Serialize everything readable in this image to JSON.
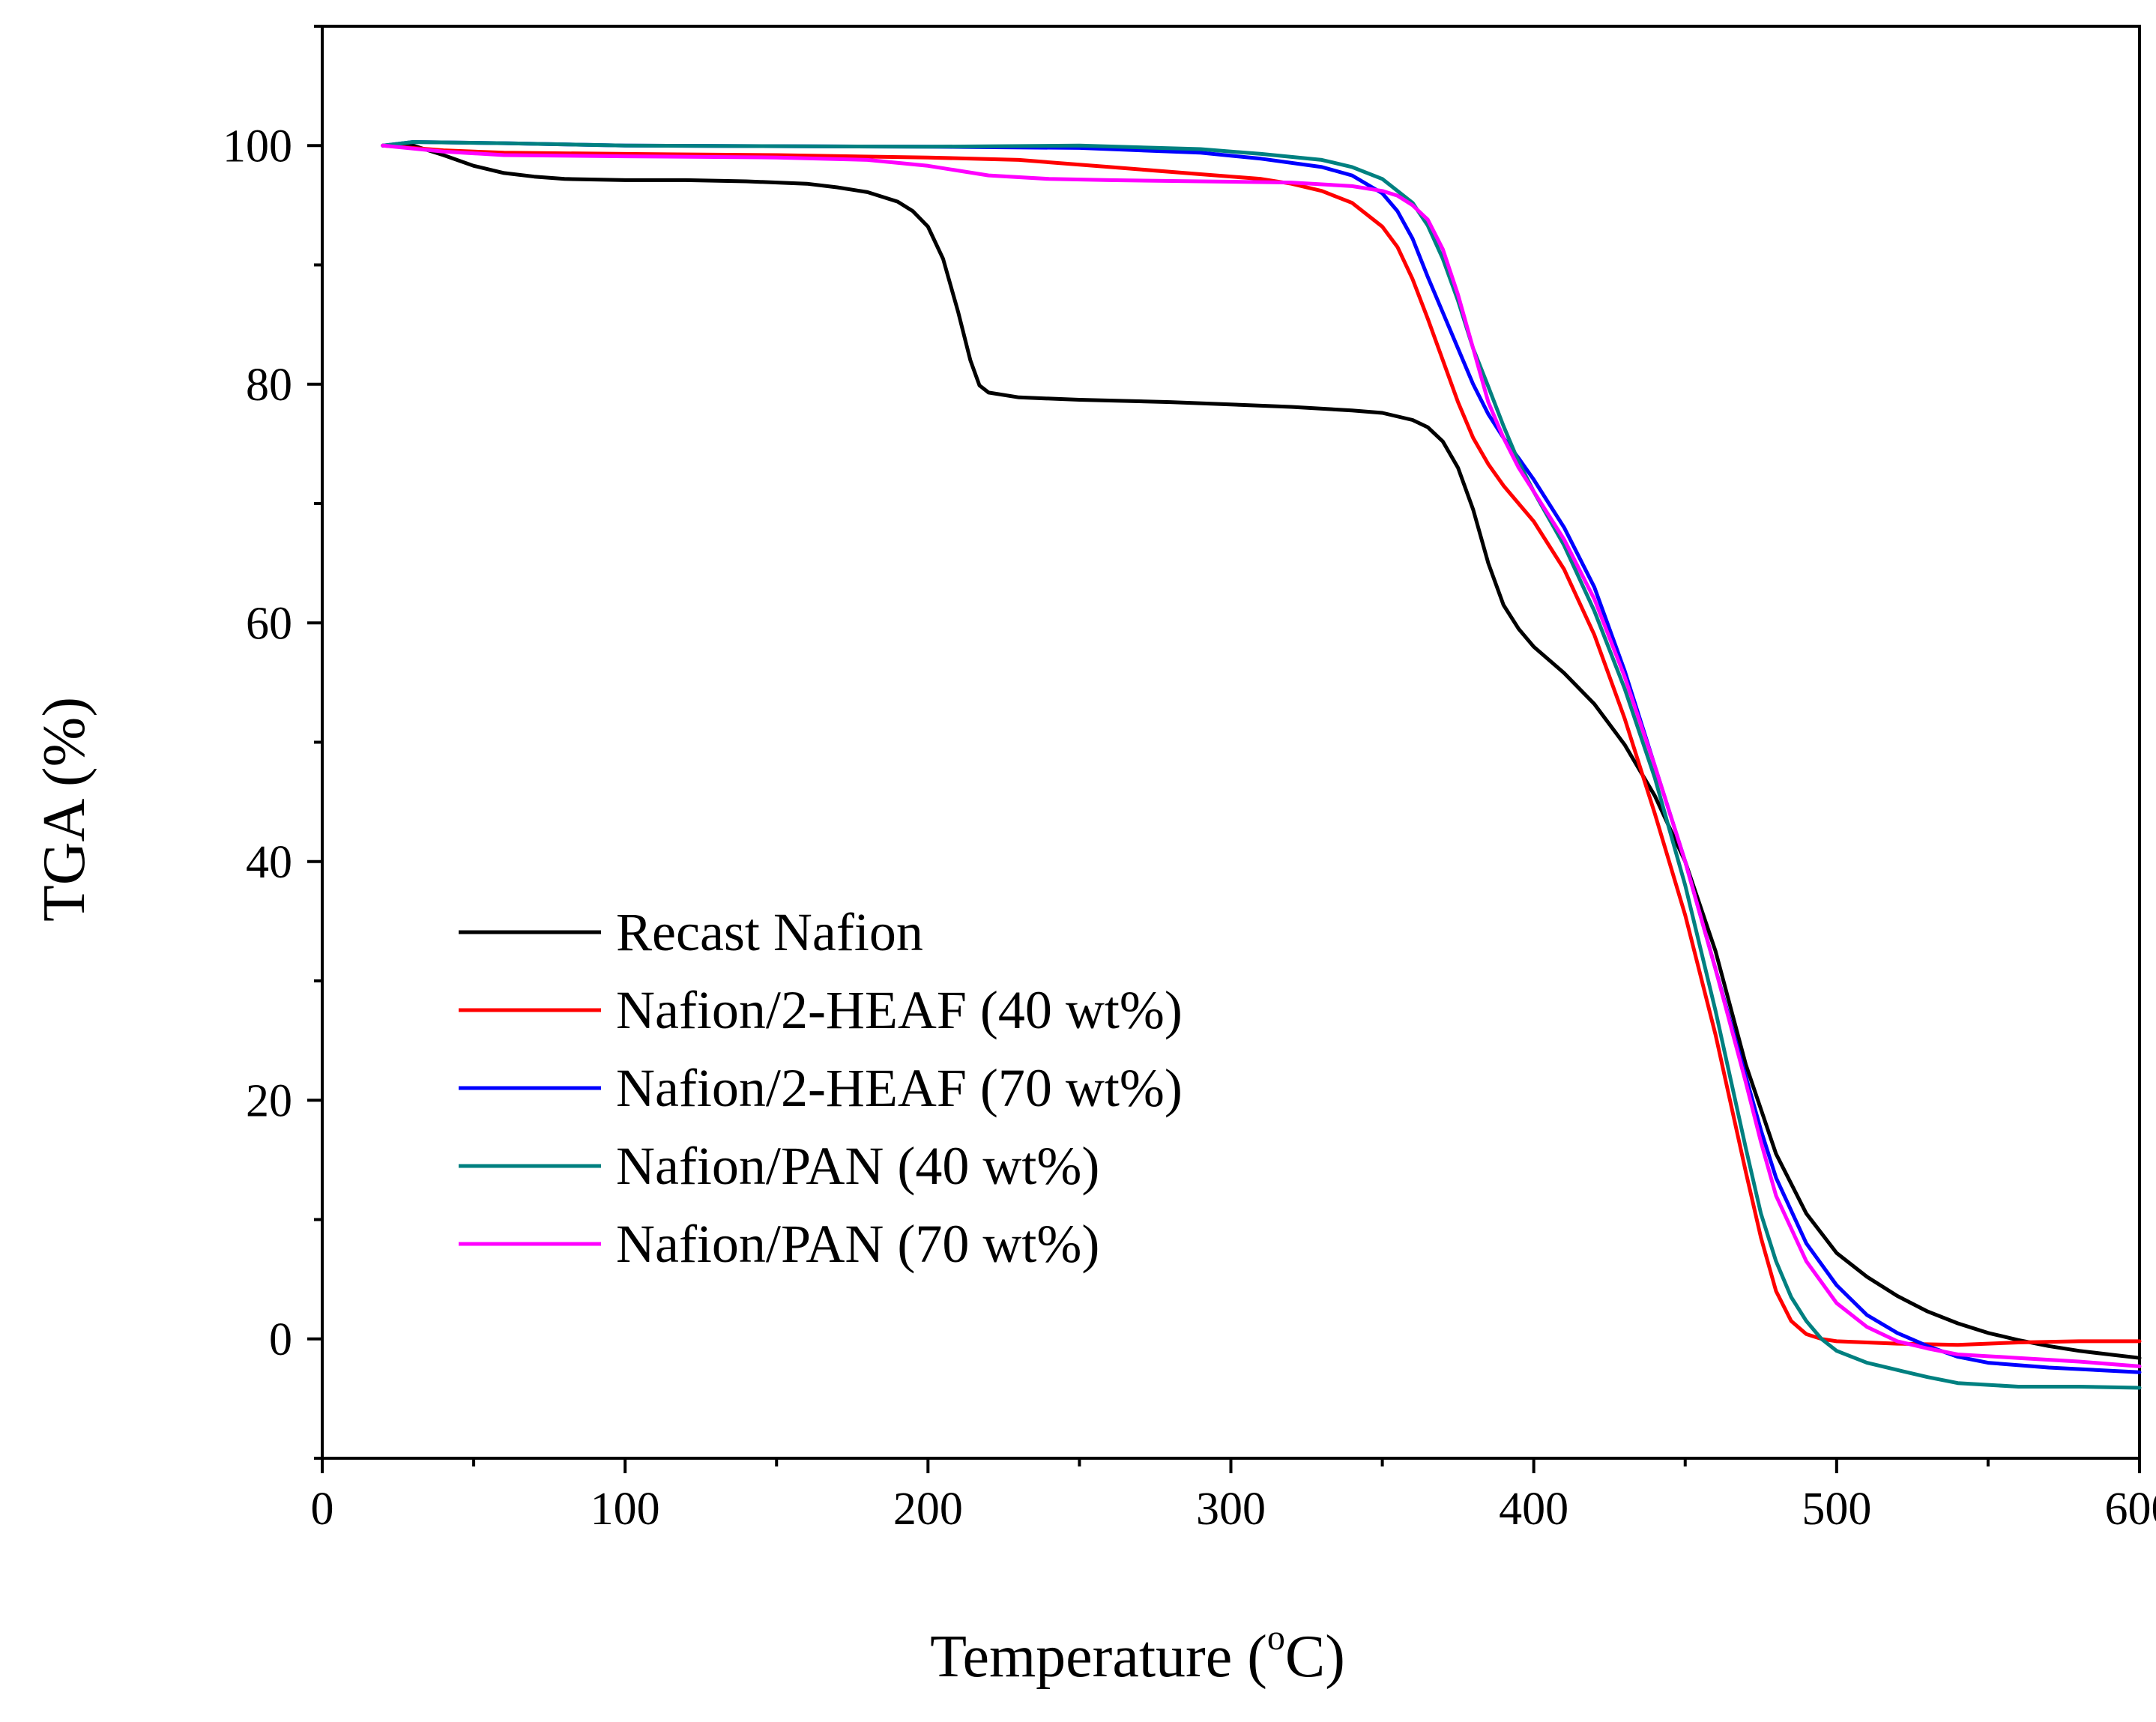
{
  "chart_data": {
    "type": "line",
    "title": "",
    "xlabel": "Temperature (",
    "xlabel_unit_sup": "o",
    "xlabel_unit_end": "C)",
    "ylabel": "TGA (%)",
    "xlim": [
      0,
      600
    ],
    "ylim": [
      -10,
      110
    ],
    "xticks": [
      0,
      100,
      200,
      300,
      400,
      500,
      600
    ],
    "yticks": [
      0,
      20,
      40,
      60,
      80,
      100
    ],
    "grid": false,
    "legend_position": "lower-left",
    "series": [
      {
        "name": "Recast Nafion",
        "color": "#000000",
        "points": [
          [
            20,
            100
          ],
          [
            30,
            100
          ],
          [
            40,
            99.2
          ],
          [
            50,
            98.3
          ],
          [
            60,
            97.7
          ],
          [
            70,
            97.4
          ],
          [
            80,
            97.2
          ],
          [
            100,
            97.1
          ],
          [
            120,
            97.1
          ],
          [
            140,
            97
          ],
          [
            160,
            96.8
          ],
          [
            170,
            96.5
          ],
          [
            180,
            96.1
          ],
          [
            190,
            95.3
          ],
          [
            195,
            94.5
          ],
          [
            200,
            93.2
          ],
          [
            205,
            90.5
          ],
          [
            210,
            86
          ],
          [
            214,
            82
          ],
          [
            217,
            79.9
          ],
          [
            220,
            79.3
          ],
          [
            230,
            78.9
          ],
          [
            250,
            78.7
          ],
          [
            280,
            78.5
          ],
          [
            300,
            78.3
          ],
          [
            320,
            78.1
          ],
          [
            340,
            77.8
          ],
          [
            350,
            77.6
          ],
          [
            360,
            77
          ],
          [
            365,
            76.4
          ],
          [
            370,
            75.2
          ],
          [
            375,
            73
          ],
          [
            380,
            69.5
          ],
          [
            385,
            65
          ],
          [
            390,
            61.5
          ],
          [
            395,
            59.5
          ],
          [
            400,
            58
          ],
          [
            410,
            55.8
          ],
          [
            420,
            53.2
          ],
          [
            430,
            49.8
          ],
          [
            440,
            45.5
          ],
          [
            450,
            40
          ],
          [
            460,
            32.5
          ],
          [
            470,
            23
          ],
          [
            480,
            15.5
          ],
          [
            490,
            10.5
          ],
          [
            500,
            7.2
          ],
          [
            510,
            5.2
          ],
          [
            520,
            3.6
          ],
          [
            530,
            2.3
          ],
          [
            540,
            1.3
          ],
          [
            550,
            0.5
          ],
          [
            560,
            -0.1
          ],
          [
            570,
            -0.6
          ],
          [
            580,
            -1
          ],
          [
            590,
            -1.3
          ],
          [
            600,
            -1.6
          ]
        ]
      },
      {
        "name": "Nafion/2-HEAF (40 wt%)",
        "color": "#ff0000",
        "points": [
          [
            20,
            100
          ],
          [
            40,
            99.6
          ],
          [
            60,
            99.4
          ],
          [
            100,
            99.3
          ],
          [
            150,
            99.2
          ],
          [
            200,
            99
          ],
          [
            230,
            98.8
          ],
          [
            260,
            98.2
          ],
          [
            290,
            97.6
          ],
          [
            310,
            97.2
          ],
          [
            320,
            96.8
          ],
          [
            330,
            96.2
          ],
          [
            340,
            95.2
          ],
          [
            350,
            93.2
          ],
          [
            355,
            91.5
          ],
          [
            360,
            88.8
          ],
          [
            365,
            85.5
          ],
          [
            370,
            82
          ],
          [
            375,
            78.5
          ],
          [
            380,
            75.5
          ],
          [
            385,
            73.3
          ],
          [
            390,
            71.5
          ],
          [
            395,
            70
          ],
          [
            400,
            68.5
          ],
          [
            410,
            64.5
          ],
          [
            420,
            59
          ],
          [
            430,
            52
          ],
          [
            440,
            44
          ],
          [
            450,
            35.5
          ],
          [
            460,
            25.5
          ],
          [
            470,
            14
          ],
          [
            475,
            8.5
          ],
          [
            480,
            4
          ],
          [
            485,
            1.5
          ],
          [
            490,
            0.4
          ],
          [
            495,
            0
          ],
          [
            500,
            -0.2
          ],
          [
            520,
            -0.4
          ],
          [
            540,
            -0.5
          ],
          [
            560,
            -0.3
          ],
          [
            580,
            -0.2
          ],
          [
            600,
            -0.2
          ]
        ]
      },
      {
        "name": "Nafion/2-HEAF (70 wt%)",
        "color": "#0000ff",
        "points": [
          [
            20,
            100
          ],
          [
            30,
            100.3
          ],
          [
            60,
            100.2
          ],
          [
            100,
            100
          ],
          [
            200,
            99.9
          ],
          [
            250,
            99.8
          ],
          [
            290,
            99.4
          ],
          [
            310,
            98.9
          ],
          [
            330,
            98.2
          ],
          [
            340,
            97.5
          ],
          [
            350,
            96
          ],
          [
            355,
            94.5
          ],
          [
            360,
            92.2
          ],
          [
            365,
            89
          ],
          [
            370,
            86
          ],
          [
            375,
            83
          ],
          [
            380,
            80
          ],
          [
            385,
            77.5
          ],
          [
            390,
            75.5
          ],
          [
            395,
            73.8
          ],
          [
            400,
            72
          ],
          [
            410,
            68
          ],
          [
            420,
            63
          ],
          [
            430,
            56
          ],
          [
            440,
            48
          ],
          [
            450,
            40
          ],
          [
            460,
            31
          ],
          [
            470,
            22
          ],
          [
            475,
            17.5
          ],
          [
            480,
            13.5
          ],
          [
            490,
            8
          ],
          [
            500,
            4.5
          ],
          [
            510,
            2
          ],
          [
            520,
            0.5
          ],
          [
            530,
            -0.6
          ],
          [
            540,
            -1.5
          ],
          [
            550,
            -2
          ],
          [
            570,
            -2.4
          ],
          [
            600,
            -2.8
          ]
        ]
      },
      {
        "name": "Nafion/PAN (40 wt%)",
        "color": "#008080",
        "points": [
          [
            20,
            100
          ],
          [
            30,
            100.3
          ],
          [
            60,
            100.2
          ],
          [
            100,
            100
          ],
          [
            200,
            99.9
          ],
          [
            250,
            100
          ],
          [
            290,
            99.7
          ],
          [
            310,
            99.3
          ],
          [
            330,
            98.8
          ],
          [
            340,
            98.2
          ],
          [
            350,
            97.2
          ],
          [
            360,
            95.2
          ],
          [
            365,
            93.3
          ],
          [
            370,
            90.5
          ],
          [
            375,
            87
          ],
          [
            380,
            83
          ],
          [
            385,
            79.8
          ],
          [
            390,
            76.5
          ],
          [
            395,
            73.5
          ],
          [
            400,
            71
          ],
          [
            410,
            66.5
          ],
          [
            420,
            61
          ],
          [
            430,
            54.5
          ],
          [
            440,
            47
          ],
          [
            450,
            38
          ],
          [
            460,
            27.5
          ],
          [
            470,
            16
          ],
          [
            475,
            10.5
          ],
          [
            480,
            6.5
          ],
          [
            485,
            3.5
          ],
          [
            490,
            1.5
          ],
          [
            495,
            0
          ],
          [
            500,
            -1
          ],
          [
            510,
            -2
          ],
          [
            520,
            -2.6
          ],
          [
            530,
            -3.2
          ],
          [
            540,
            -3.7
          ],
          [
            560,
            -4
          ],
          [
            580,
            -4
          ],
          [
            600,
            -4.1
          ]
        ]
      },
      {
        "name": "Nafion/PAN (70 wt%)",
        "color": "#ff00ff",
        "points": [
          [
            20,
            100
          ],
          [
            40,
            99.5
          ],
          [
            60,
            99.2
          ],
          [
            100,
            99.1
          ],
          [
            150,
            99
          ],
          [
            180,
            98.8
          ],
          [
            200,
            98.3
          ],
          [
            220,
            97.5
          ],
          [
            240,
            97.2
          ],
          [
            260,
            97.1
          ],
          [
            290,
            97
          ],
          [
            320,
            96.9
          ],
          [
            340,
            96.6
          ],
          [
            350,
            96.2
          ],
          [
            355,
            95.8
          ],
          [
            360,
            95
          ],
          [
            365,
            93.8
          ],
          [
            370,
            91.3
          ],
          [
            375,
            87.5
          ],
          [
            380,
            83
          ],
          [
            385,
            78.5
          ],
          [
            390,
            75.5
          ],
          [
            395,
            73
          ],
          [
            400,
            71
          ],
          [
            410,
            67
          ],
          [
            420,
            62
          ],
          [
            430,
            55.5
          ],
          [
            440,
            48
          ],
          [
            450,
            40
          ],
          [
            460,
            31
          ],
          [
            470,
            21.5
          ],
          [
            475,
            16.5
          ],
          [
            480,
            12
          ],
          [
            490,
            6.5
          ],
          [
            500,
            3
          ],
          [
            510,
            1
          ],
          [
            520,
            -0.2
          ],
          [
            530,
            -0.8
          ],
          [
            540,
            -1.3
          ],
          [
            560,
            -1.6
          ],
          [
            580,
            -1.9
          ],
          [
            600,
            -2.3
          ]
        ]
      }
    ]
  }
}
